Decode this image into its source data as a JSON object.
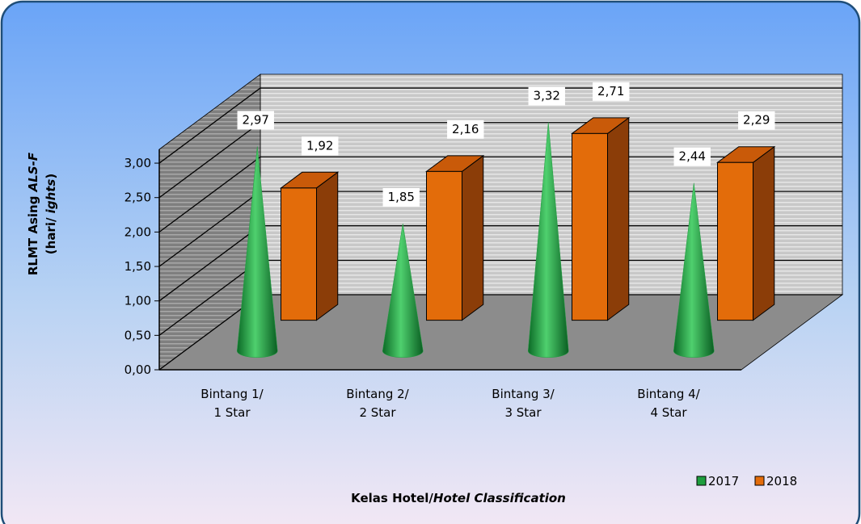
{
  "chart_data": {
    "type": "bar3d",
    "categories": [
      [
        "Bintang 1/",
        "1 Star"
      ],
      [
        "Bintang 2/",
        "2 Star"
      ],
      [
        "Bintang 3/",
        "3 Star"
      ],
      [
        "Bintang 4/",
        "4 Star"
      ]
    ],
    "series": [
      {
        "name": "2017",
        "color": "#1e9e3e",
        "shape": "cone",
        "values": [
          2.97,
          1.85,
          3.32,
          2.44
        ],
        "value_labels": [
          "2,97",
          "1,85",
          "3,32",
          "2,44"
        ]
      },
      {
        "name": "2018",
        "color": "#e36c0a",
        "shape": "box",
        "values": [
          1.92,
          2.16,
          2.71,
          2.29
        ],
        "value_labels": [
          "1,92",
          "2,16",
          "2,71",
          "2,29"
        ]
      }
    ],
    "ylim": [
      0,
      3.2
    ],
    "yticks": [
      {
        "value": 0,
        "label": "0,00"
      },
      {
        "value": 0.5,
        "label": "0,50"
      },
      {
        "value": 1,
        "label": "1,00"
      },
      {
        "value": 1.5,
        "label": "1,50"
      },
      {
        "value": 2,
        "label": "2,00"
      },
      {
        "value": 2.5,
        "label": "2,50"
      },
      {
        "value": 3,
        "label": "3,00"
      }
    ],
    "ylabel": [
      [
        "RLMT Asing ",
        "ALS-F"
      ],
      [
        "(hari/ ",
        "ights",
        ")"
      ]
    ],
    "xlabel": [
      "Kelas Hotel/",
      "Hotel Classification"
    ],
    "grid": true,
    "legend": "bottom-right"
  }
}
